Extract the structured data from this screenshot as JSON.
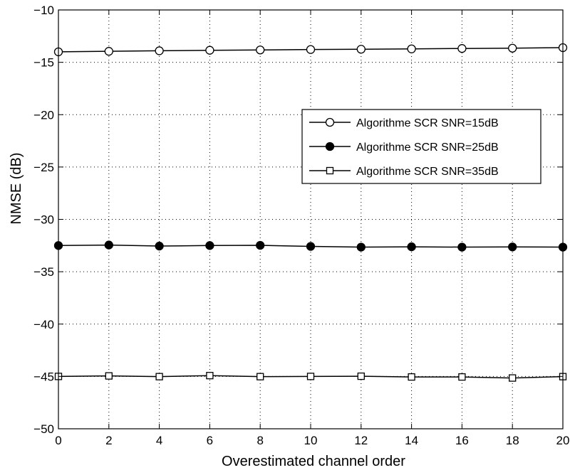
{
  "chart_data": {
    "type": "line",
    "xlabel": "Overestimated channel order",
    "ylabel": "NMSE (dB)",
    "xlim": [
      0,
      20
    ],
    "ylim": [
      -50,
      -10
    ],
    "xticks": [
      0,
      2,
      4,
      6,
      8,
      10,
      12,
      14,
      16,
      18,
      20
    ],
    "yticks": [
      -50,
      -45,
      -40,
      -35,
      -30,
      -25,
      -20,
      -15,
      -10
    ],
    "xtick_labels": [
      "0",
      "2",
      "4",
      "6",
      "8",
      "10",
      "12",
      "14",
      "16",
      "18",
      "20"
    ],
    "ytick_labels": [
      "−50",
      "−45",
      "−40",
      "−35",
      "−30",
      "−25",
      "−20",
      "−15",
      "−10"
    ],
    "grid": true,
    "legend_position": "right",
    "x": [
      0,
      2,
      4,
      6,
      8,
      10,
      12,
      14,
      16,
      18,
      20
    ],
    "series": [
      {
        "name": "Algorithme SCR SNR=15dB",
        "marker": "open-circle",
        "color": "#000000",
        "values": [
          -14.0,
          -13.95,
          -13.9,
          -13.85,
          -13.82,
          -13.78,
          -13.75,
          -13.72,
          -13.68,
          -13.65,
          -13.6
        ]
      },
      {
        "name": "Algorithme SCR SNR=25dB",
        "marker": "filled-circle",
        "color": "#000000",
        "values": [
          -32.5,
          -32.45,
          -32.55,
          -32.5,
          -32.48,
          -32.58,
          -32.65,
          -32.62,
          -32.65,
          -32.63,
          -32.65
        ]
      },
      {
        "name": "Algorithme SCR SNR=35dB",
        "marker": "open-square",
        "color": "#000000",
        "values": [
          -45.0,
          -44.95,
          -45.02,
          -44.92,
          -45.02,
          -45.0,
          -44.98,
          -45.05,
          -45.05,
          -45.15,
          -45.02
        ]
      }
    ]
  }
}
